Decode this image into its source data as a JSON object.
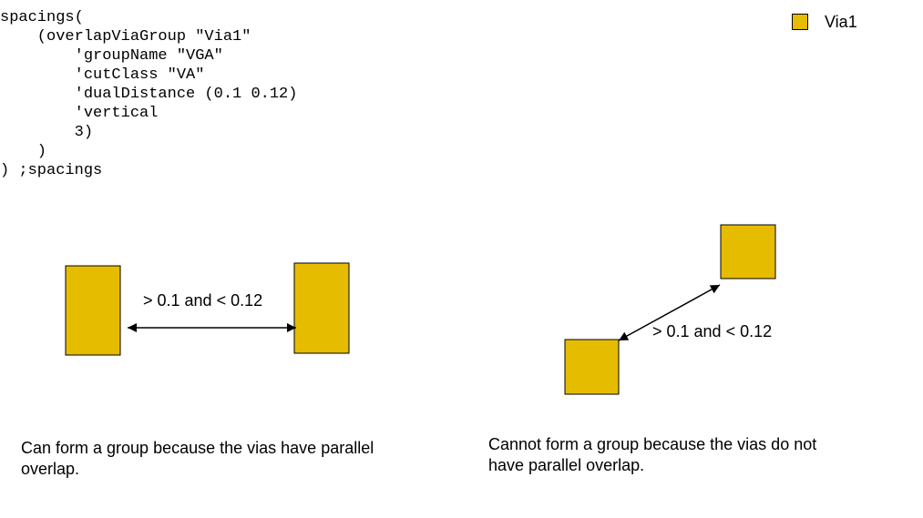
{
  "code": {
    "lines": [
      "spacings(",
      "    (overlapViaGroup \"Via1\"",
      "        'groupName \"VGA\"",
      "        'cutClass \"VA\"",
      "        'dualDistance (0.1 0.12)",
      "        'vertical",
      "        3)",
      "    )",
      ") ;spacings"
    ]
  },
  "legend": {
    "label": "Via1",
    "color": "#e6bc00"
  },
  "left_example": {
    "distance_label": "> 0.1 and < 0.12",
    "caption_lines": [
      "Can form a group because the vias have parallel",
      "overlap."
    ]
  },
  "right_example": {
    "distance_label": "> 0.1 and < 0.12",
    "caption_lines": [
      "Cannot form a group because the vias do not",
      "have parallel overlap."
    ]
  },
  "colors": {
    "via": "#e6bc00",
    "outline": "#000000"
  }
}
